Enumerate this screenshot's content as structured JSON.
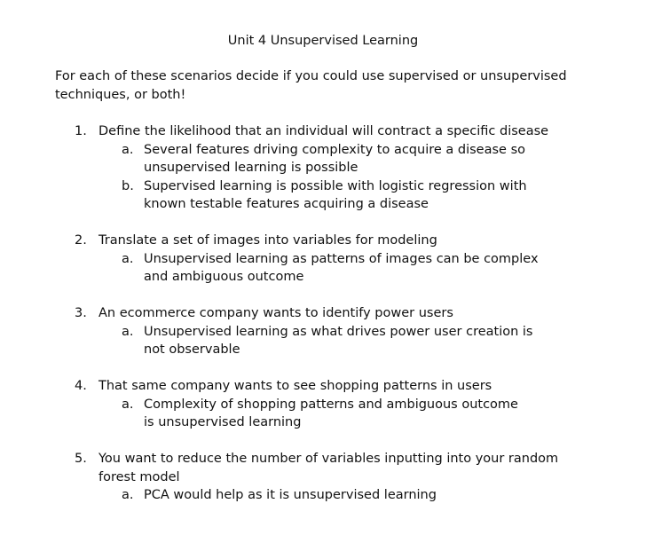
{
  "title": "Unit 4 Unsupervised Learning",
  "intro": "For each of these scenarios decide if you could use supervised or unsupervised techniques, or both!",
  "questions": [
    {
      "number": "1.",
      "text": "Define the likelihood that an individual will contract a specific disease",
      "answers": [
        {
          "letter": "a.",
          "text": "Several features driving complexity to acquire a disease so unsupervised learning is possible"
        },
        {
          "letter": "b.",
          "text": "Supervised learning is possible with logistic regression with known testable features acquiring a disease"
        }
      ]
    },
    {
      "number": "2.",
      "text": "Translate a set of images into variables for modeling",
      "answers": [
        {
          "letter": "a.",
          "text": "Unsupervised learning as patterns of images can be complex and ambiguous outcome"
        }
      ]
    },
    {
      "number": "3.",
      "text": "An ecommerce company wants to identify power users",
      "answers": [
        {
          "letter": "a.",
          "text": "Unsupervised learning as what drives power user creation is not observable"
        }
      ]
    },
    {
      "number": "4.",
      "text": "That same company wants to see shopping patterns in users",
      "answers": [
        {
          "letter": "a.",
          "text": "Complexity of shopping patterns and ambiguous outcome is unsupervised learning"
        }
      ]
    },
    {
      "number": "5.",
      "text": "You want to reduce the number of variables inputting into your random forest model",
      "answers": [
        {
          "letter": "a.",
          "text": "PCA would help as it is unsupervised learning"
        }
      ]
    }
  ]
}
